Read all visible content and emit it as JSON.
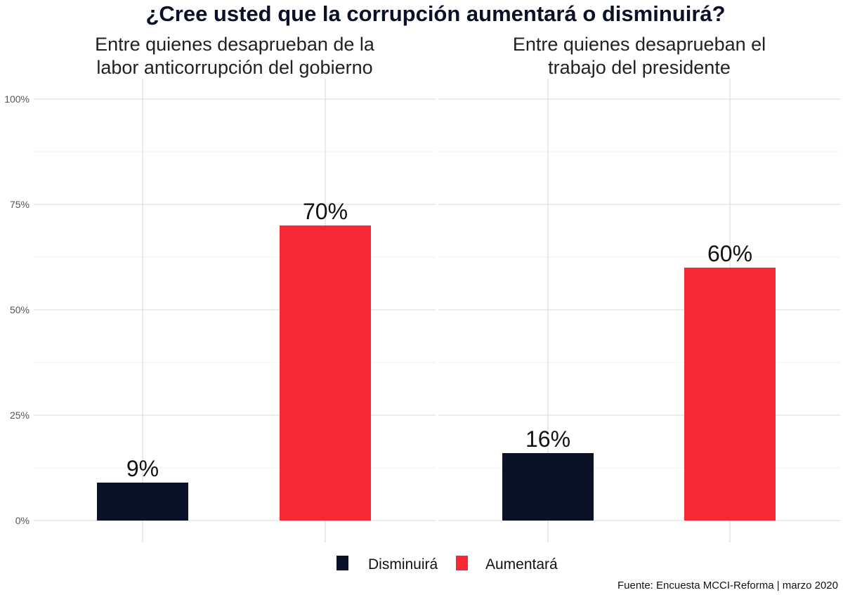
{
  "chart_data": {
    "type": "bar",
    "title": "¿Cree usted que la corrupción aumentará o disminuirá?",
    "caption": "Fuente: Encuesta MCCI-Reforma | marzo 2020",
    "y_ticks": [
      "0%",
      "25%",
      "50%",
      "75%",
      "100%"
    ],
    "ylim": [
      0,
      100
    ],
    "grid": true,
    "legend_position": "bottom",
    "colors": {
      "Disminuirá": "#0b1126",
      "Aumentará": "#f72836"
    },
    "legend": [
      {
        "name": "Disminuirá",
        "color": "#0b1126"
      },
      {
        "name": "Aumentará",
        "color": "#f72836"
      }
    ],
    "panels": [
      {
        "subtitle_line1": "Entre quienes desaprueban de la",
        "subtitle_line2": "labor anticorrupción del gobierno",
        "bars": [
          {
            "series": "Disminuirá",
            "value": 9,
            "label": "9%"
          },
          {
            "series": "Aumentará",
            "value": 70,
            "label": "70%"
          }
        ]
      },
      {
        "subtitle_line1": "Entre quienes desaprueban el",
        "subtitle_line2": "trabajo del presidente",
        "bars": [
          {
            "series": "Disminuirá",
            "value": 16,
            "label": "16%"
          },
          {
            "series": "Aumentará",
            "value": 60,
            "label": "60%"
          }
        ]
      }
    ]
  }
}
